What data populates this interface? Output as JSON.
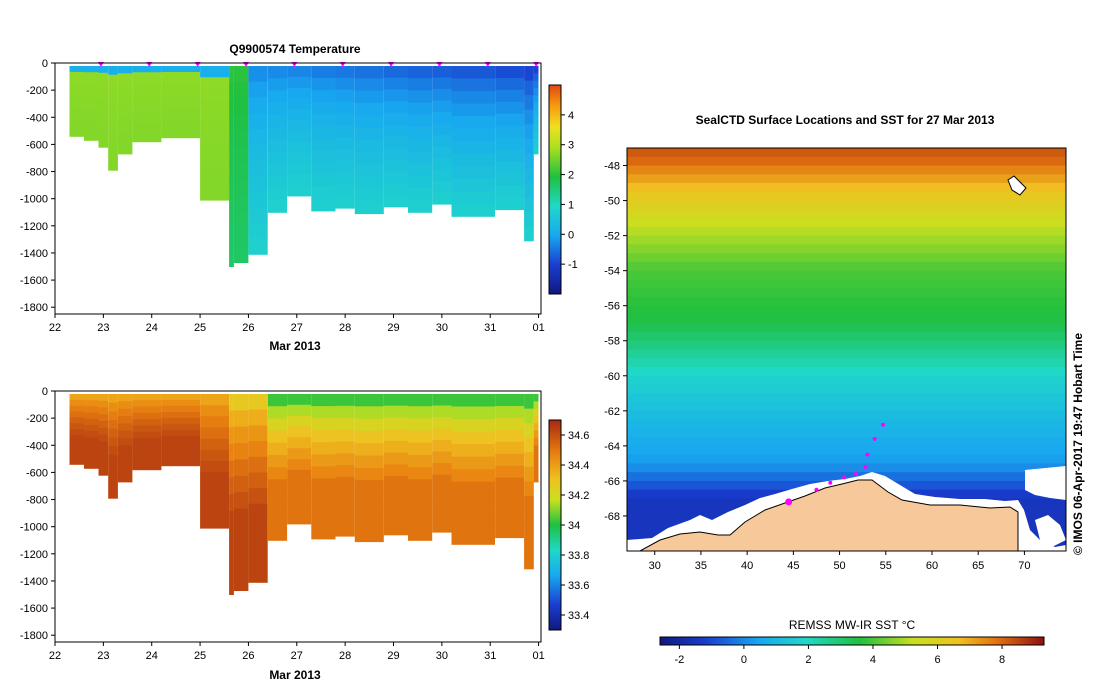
{
  "left_top": {
    "title": "Q9900574  Temperature",
    "xlabel": "Mar 2013",
    "x_ticks": [
      "22",
      "23",
      "24",
      "25",
      "26",
      "27",
      "28",
      "29",
      "30",
      "31",
      "01"
    ],
    "y_ticks": [
      "0",
      "-200",
      "-400",
      "-600",
      "-800",
      "-1000",
      "-1200",
      "-1400",
      "-1600",
      "-1800"
    ],
    "colorbar_ticks": [
      "4",
      "3",
      "2",
      "1",
      "0",
      "-1"
    ]
  },
  "left_bottom": {
    "title": "",
    "xlabel": "Mar 2013",
    "x_ticks": [
      "22",
      "23",
      "24",
      "25",
      "26",
      "27",
      "28",
      "29",
      "30",
      "31",
      "01"
    ],
    "y_ticks": [
      "0",
      "-200",
      "-400",
      "-600",
      "-800",
      "-1000",
      "-1200",
      "-1400",
      "-1600",
      "-1800"
    ],
    "colorbar_ticks": [
      "34.6",
      "34.4",
      "34.2",
      "34",
      "33.8",
      "33.6",
      "33.4"
    ]
  },
  "map": {
    "title": "SealCTD Surface Locations and SST for 27 Mar 2013",
    "x_ticks": [
      "30",
      "35",
      "40",
      "45",
      "50",
      "55",
      "60",
      "65",
      "70"
    ],
    "y_ticks": [
      "-48",
      "-50",
      "-52",
      "-54",
      "-56",
      "-58",
      "-60",
      "-62",
      "-64",
      "-66",
      "-68"
    ],
    "colorbar_label": "REMSS MW-IR SST °C",
    "colorbar_ticks": [
      "-2",
      "0",
      "2",
      "4",
      "6",
      "8"
    ],
    "credit": "© IMOS 06-Apr-2017 19:47 Hobart Time"
  },
  "colors": {
    "ocean_cold": "#1c2fa0",
    "ocean_mid": "#21c23a",
    "ocean_warm": "#d77a08",
    "land": "#f7c99a",
    "ice": "#ffffff",
    "marker": "#ff00ff"
  },
  "chart_data": [
    {
      "type": "heatmap",
      "title": "Q9900574  Temperature",
      "variable": "temperature",
      "xlabel": "Mar 2013",
      "ylabel": "",
      "x_range": [
        22,
        32.05
      ],
      "ylim": [
        -1850,
        0
      ],
      "color_range": [
        -2,
        5
      ],
      "surface_markers_day": [
        23,
        24,
        25,
        26,
        27,
        28,
        29,
        30,
        31,
        32
      ],
      "profiles": [
        {
          "day": 22.3,
          "max_depth": -540
        },
        {
          "day": 22.6,
          "max_depth": -570
        },
        {
          "day": 22.9,
          "max_depth": -620
        },
        {
          "day": 23.1,
          "max_depth": -790
        },
        {
          "day": 23.3,
          "max_depth": -670
        },
        {
          "day": 23.6,
          "max_depth": -580
        },
        {
          "day": 24.2,
          "max_depth": -550
        },
        {
          "day": 25.0,
          "max_depth": -1010
        },
        {
          "day": 25.6,
          "max_depth": -1500
        },
        {
          "day": 25.7,
          "max_depth": -1470
        },
        {
          "day": 26.0,
          "max_depth": -1410
        },
        {
          "day": 26.4,
          "max_depth": -1100
        },
        {
          "day": 26.8,
          "max_depth": -980
        },
        {
          "day": 27.3,
          "max_depth": -1090
        },
        {
          "day": 27.8,
          "max_depth": -1070
        },
        {
          "day": 28.2,
          "max_depth": -1110
        },
        {
          "day": 28.8,
          "max_depth": -1060
        },
        {
          "day": 29.3,
          "max_depth": -1100
        },
        {
          "day": 29.8,
          "max_depth": -1040
        },
        {
          "day": 30.2,
          "max_depth": -1130
        },
        {
          "day": 31.1,
          "max_depth": -1080
        },
        {
          "day": 31.7,
          "max_depth": -1310
        },
        {
          "day": 31.9,
          "max_depth": -670
        }
      ]
    },
    {
      "type": "heatmap",
      "title": "",
      "variable": "salinity",
      "xlabel": "Mar 2013",
      "ylabel": "",
      "x_range": [
        22,
        32.05
      ],
      "ylim": [
        -1850,
        0
      ],
      "color_range": [
        33.3,
        34.7
      ],
      "profiles": [
        {
          "day": 22.3,
          "max_depth": -540
        },
        {
          "day": 22.6,
          "max_depth": -570
        },
        {
          "day": 22.9,
          "max_depth": -620
        },
        {
          "day": 23.1,
          "max_depth": -790
        },
        {
          "day": 23.3,
          "max_depth": -670
        },
        {
          "day": 23.6,
          "max_depth": -580
        },
        {
          "day": 24.2,
          "max_depth": -550
        },
        {
          "day": 25.0,
          "max_depth": -1010
        },
        {
          "day": 25.6,
          "max_depth": -1500
        },
        {
          "day": 25.7,
          "max_depth": -1470
        },
        {
          "day": 26.0,
          "max_depth": -1410
        },
        {
          "day": 26.4,
          "max_depth": -1100
        },
        {
          "day": 26.8,
          "max_depth": -980
        },
        {
          "day": 27.3,
          "max_depth": -1090
        },
        {
          "day": 27.8,
          "max_depth": -1070
        },
        {
          "day": 28.2,
          "max_depth": -1110
        },
        {
          "day": 28.8,
          "max_depth": -1060
        },
        {
          "day": 29.3,
          "max_depth": -1100
        },
        {
          "day": 29.8,
          "max_depth": -1040
        },
        {
          "day": 30.2,
          "max_depth": -1130
        },
        {
          "day": 31.1,
          "max_depth": -1080
        },
        {
          "day": 31.7,
          "max_depth": -1310
        },
        {
          "day": 31.9,
          "max_depth": -670
        }
      ]
    },
    {
      "type": "heatmap",
      "title": "SealCTD Surface Locations and SST for 27 Mar 2013",
      "variable": "sea surface temperature",
      "xlabel": "",
      "ylabel": "",
      "x_range": [
        27,
        74.5
      ],
      "ylim": [
        -70,
        -47
      ],
      "color_range": [
        -2.6,
        9.3
      ],
      "sst_bands": [
        {
          "lat": -47.5,
          "sst": 8.2
        },
        {
          "lat": -49.5,
          "sst": 6.5
        },
        {
          "lat": -51.5,
          "sst": 5.2
        },
        {
          "lat": -54.0,
          "sst": 4.0
        },
        {
          "lat": -57.0,
          "sst": 3.5
        },
        {
          "lat": -60.0,
          "sst": 1.8
        },
        {
          "lat": -62.5,
          "sst": 1.0
        },
        {
          "lat": -65.0,
          "sst": 0.3
        },
        {
          "lat": -67.0,
          "sst": -1.5
        }
      ],
      "seal_locations": [
        {
          "lon": 44.5,
          "lat": -67.2
        },
        {
          "lon": 47.5,
          "lat": -66.5
        },
        {
          "lon": 49.0,
          "lat": -66.1
        },
        {
          "lon": 50.5,
          "lat": -65.8
        },
        {
          "lon": 51.8,
          "lat": -65.6
        },
        {
          "lon": 52.8,
          "lat": -65.2
        },
        {
          "lon": 53.0,
          "lat": -64.5
        },
        {
          "lon": 53.8,
          "lat": -63.6
        },
        {
          "lon": 54.7,
          "lat": -62.8
        }
      ]
    }
  ]
}
